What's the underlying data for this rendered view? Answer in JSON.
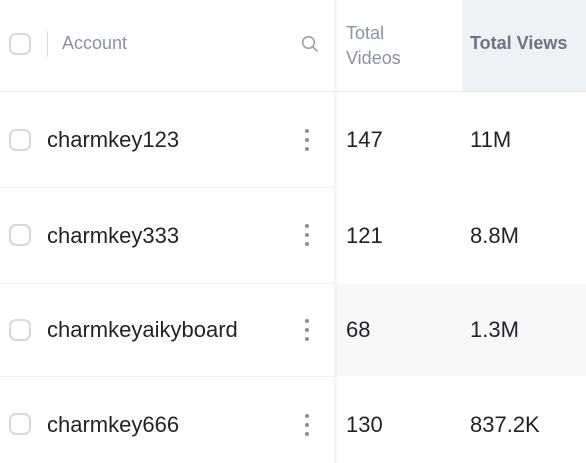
{
  "header": {
    "account_label": "Account",
    "total_videos_label_line1": "Total",
    "total_videos_label_line2": "Videos",
    "total_views_label": "Total Views"
  },
  "rows": [
    {
      "account": "charmkey123",
      "total_videos": "147",
      "total_views": "11M"
    },
    {
      "account": "charmkey333",
      "total_videos": "121",
      "total_views": "8.8M"
    },
    {
      "account": "charmkeyaikyboard",
      "total_videos": "68",
      "total_views": "1.3M"
    },
    {
      "account": "charmkey666",
      "total_videos": "130",
      "total_views": "837.2K"
    }
  ],
  "icons": {
    "search": "search-icon",
    "row_menu": "more-vertical-icon",
    "checkbox": "checkbox-icon"
  },
  "colors": {
    "header_text": "#8a93a3",
    "header_active_bg": "#eef1f5",
    "row_band_bg": "#f7f8fa",
    "cell_text": "#1f2329",
    "checkbox_border": "#d5d8de"
  }
}
